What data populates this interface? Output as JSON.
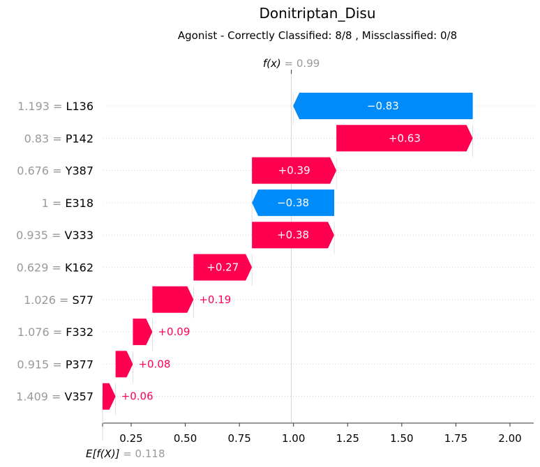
{
  "chart_data": {
    "type": "waterfall",
    "title": "Donitriptan_Disu",
    "subtitle": "Agonist - Correctly Classified: 8/8 , Missclassified: 0/8",
    "fx_label": "f(x)",
    "fx_value": "0.99",
    "ex_label": "E[f(X)]",
    "ex_value": "0.118",
    "xlim": [
      0.12,
      2.1
    ],
    "xticks": [
      0.25,
      0.5,
      0.75,
      1.0,
      1.25,
      1.5,
      1.75,
      2.0
    ],
    "xtick_labels": [
      "0.25",
      "0.50",
      "0.75",
      "1.00",
      "1.25",
      "1.50",
      "1.75",
      "2.00"
    ],
    "features": [
      {
        "value": "1.193",
        "name": "L136",
        "contribution": -0.83,
        "label": "−0.83"
      },
      {
        "value": "0.83",
        "name": "P142",
        "contribution": 0.63,
        "label": "+0.63"
      },
      {
        "value": "0.676",
        "name": "Y387",
        "contribution": 0.39,
        "label": "+0.39"
      },
      {
        "value": "1",
        "name": "E318",
        "contribution": -0.38,
        "label": "−0.38"
      },
      {
        "value": "0.935",
        "name": "V333",
        "contribution": 0.38,
        "label": "+0.38"
      },
      {
        "value": "0.629",
        "name": "K162",
        "contribution": 0.27,
        "label": "+0.27"
      },
      {
        "value": "1.026",
        "name": "S77",
        "contribution": 0.19,
        "label": "+0.19"
      },
      {
        "value": "1.076",
        "name": "F332",
        "contribution": 0.09,
        "label": "+0.09"
      },
      {
        "value": "0.915",
        "name": "P377",
        "contribution": 0.08,
        "label": "+0.08"
      },
      {
        "value": "1.409",
        "name": "V357",
        "contribution": 0.06,
        "label": "+0.06"
      }
    ],
    "colors": {
      "positive": "#ff0051",
      "negative": "#008bfb",
      "grey": "#999999"
    }
  }
}
